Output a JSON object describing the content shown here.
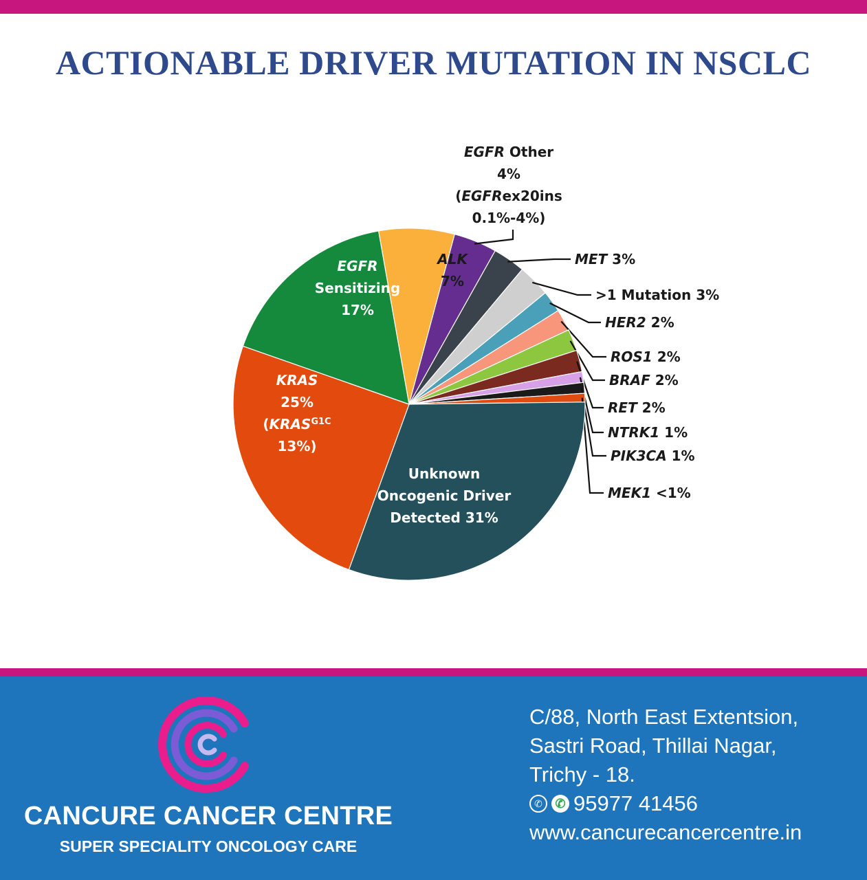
{
  "title": "ACTIONABLE DRIVER MUTATION IN NSCLC",
  "chart_data": {
    "type": "pie",
    "title": "",
    "slices": [
      {
        "id": "alk",
        "label": "ALK",
        "value_text": "7%",
        "value": 7,
        "color": "#fbb03b",
        "italic_label": true
      },
      {
        "id": "egfr-other",
        "value": 4,
        "color": "#662d91",
        "lines": [
          {
            "segs": [
              {
                "t": "EGFR",
                "i": true
              },
              {
                "t": " Other"
              }
            ]
          },
          {
            "segs": [
              {
                "t": "4%"
              }
            ]
          },
          {
            "segs": [
              {
                "t": "("
              },
              {
                "t": "EGFR",
                "i": true
              },
              {
                "t": "ex20ins"
              }
            ]
          },
          {
            "segs": [
              {
                "t": "0.1%-4%)"
              }
            ]
          }
        ]
      },
      {
        "id": "met",
        "label": "MET",
        "value_text": "3%",
        "value": 3,
        "color": "#3a434b"
      },
      {
        "id": "multi",
        "label": ">1 Mutation",
        "value_text": "3%",
        "value": 3,
        "color": "#cfcfcf",
        "italic_label": false
      },
      {
        "id": "her2",
        "label": "HER2",
        "value_text": "2%",
        "value": 2,
        "color": "#4aa0b8"
      },
      {
        "id": "ros1",
        "label": "ROS1",
        "value_text": "2%",
        "value": 2,
        "color": "#f7967a"
      },
      {
        "id": "braf",
        "label": "BRAF",
        "value_text": "2%",
        "value": 2,
        "color": "#8dc63f"
      },
      {
        "id": "ret",
        "label": "RET",
        "value_text": "2%",
        "value": 2,
        "color": "#7b2a20"
      },
      {
        "id": "ntrk1",
        "label": "NTRK1",
        "value_text": "1%",
        "value": 1,
        "color": "#d8a0e6"
      },
      {
        "id": "pik3ca",
        "label": "PIK3CA",
        "value_text": "1%",
        "value": 1,
        "color": "#1a1a1a"
      },
      {
        "id": "mek1",
        "label": "MEK1",
        "value_text": "<1%",
        "value": 0.8,
        "color": "#e04b12"
      },
      {
        "id": "unknown",
        "value": 31,
        "color": "#24505c",
        "lines": [
          {
            "segs": [
              {
                "t": "Unknown"
              }
            ]
          },
          {
            "segs": [
              {
                "t": "Oncogenic Driver"
              }
            ]
          },
          {
            "segs": [
              {
                "t": "Detected 31%"
              }
            ]
          }
        ]
      },
      {
        "id": "kras",
        "value": 25,
        "color": "#e24a0e",
        "lines": [
          {
            "segs": [
              {
                "t": "KRAS",
                "i": true
              }
            ]
          },
          {
            "segs": [
              {
                "t": "25%"
              }
            ]
          },
          {
            "segs": [
              {
                "t": "("
              },
              {
                "t": "KRAS",
                "i": true
              },
              {
                "t": "G1C",
                "sup": true
              }
            ]
          },
          {
            "segs": [
              {
                "t": "13%)"
              }
            ]
          }
        ]
      },
      {
        "id": "egfr-sens",
        "value": 17,
        "color": "#158a3c",
        "lines": [
          {
            "segs": [
              {
                "t": "EGFR",
                "i": true
              }
            ]
          },
          {
            "segs": [
              {
                "t": "Sensitizing"
              }
            ]
          },
          {
            "segs": [
              {
                "t": "17%"
              }
            ]
          }
        ]
      }
    ]
  },
  "footer": {
    "org_name": "CANCURE CANCER CENTRE",
    "tagline": "SUPER SPECIALITY ONCOLOGY CARE",
    "address_lines": [
      "C/88, North East Extentsion,",
      "Sastri Road, Thillai Nagar,",
      "Trichy - 18."
    ],
    "phone": "95977 41456",
    "website": "www.cancurecancercentre.in",
    "phone_icon": "phone-icon",
    "whatsapp_icon": "whatsapp-icon",
    "colors": {
      "accent": "#c8167f",
      "footer_bg": "#1e75bb",
      "title": "#2e4a8c"
    }
  }
}
